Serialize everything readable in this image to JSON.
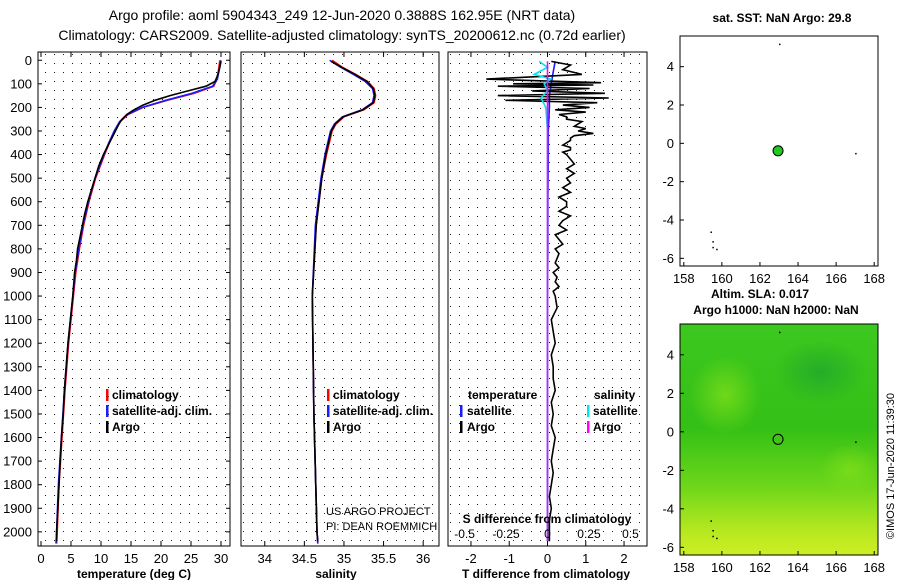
{
  "header": {
    "title_line1": "Argo profile: aoml 5904343_249 12-Jun-2020 0.3888S 162.95E (NRT data)",
    "title_line2": "Climatology: CARS2009. Satellite-adjusted climatology: synTS_20200612.nc (0.72d earlier)"
  },
  "credit": {
    "line1": "US ARGO PROJECT",
    "line2": "PI: DEAN ROEMMICH"
  },
  "watermark": "©IMOS 17-Jun-2020 11:39:30",
  "colors": {
    "climatology": "#ff0000",
    "satellite": "#1a1aff",
    "argo": "#000000",
    "sat_salinity": "#00e5ee",
    "argo_salinity": "#ff00ff",
    "map_green": "#3ccf1a",
    "float_marker": "#22c922"
  },
  "chart_data": [
    {
      "id": "temperature",
      "type": "line",
      "xlabel": "temperature (deg C)",
      "ylabel": "",
      "xlim": [
        -0.5,
        31.5
      ],
      "ylim": [
        2060,
        -35
      ],
      "xticks": [
        0,
        5,
        10,
        15,
        20,
        25,
        30
      ],
      "xticklabels": [
        "0",
        "5",
        "10",
        "15",
        "20",
        "25",
        "30"
      ],
      "yticks": [
        0,
        100,
        200,
        300,
        400,
        500,
        600,
        700,
        800,
        900,
        1000,
        1100,
        1200,
        1300,
        1400,
        1500,
        1600,
        1700,
        1800,
        1900,
        2000
      ],
      "legend": [
        "climatology",
        "satellite-adj. clim.",
        "Argo"
      ],
      "legend_title_left": "",
      "legend_title_right": "",
      "series": [
        {
          "name": "climatology",
          "color": "#ff0000",
          "y": [
            0,
            40,
            80,
            110,
            140,
            170,
            200,
            230,
            260,
            300,
            350,
            400,
            500,
            600,
            700,
            800,
            900,
            1000,
            1200,
            1400,
            1600,
            1800,
            2000,
            2050
          ],
          "x": [
            29.8,
            29.6,
            29.3,
            28.8,
            25.5,
            21.0,
            17.0,
            14.5,
            13.2,
            12.3,
            11.4,
            10.6,
            9.1,
            8.0,
            7.1,
            6.4,
            5.8,
            5.4,
            4.6,
            4.0,
            3.5,
            3.0,
            2.7,
            2.6
          ]
        },
        {
          "name": "satellite-adj. clim.",
          "color": "#1a1aff",
          "y": [
            0,
            40,
            80,
            110,
            140,
            170,
            200,
            230,
            260,
            300,
            350,
            400,
            500,
            600,
            700,
            800,
            900,
            1000,
            1200,
            1400,
            1600,
            1800,
            2000,
            2050
          ],
          "x": [
            30.0,
            29.7,
            29.4,
            28.6,
            25.2,
            20.8,
            16.9,
            14.4,
            13.1,
            12.2,
            11.3,
            10.5,
            9.0,
            7.9,
            7.0,
            6.3,
            5.7,
            5.3,
            4.5,
            3.9,
            3.4,
            2.9,
            2.6,
            2.5
          ]
        },
        {
          "name": "Argo",
          "color": "#000000",
          "y": [
            5,
            30,
            60,
            90,
            110,
            130,
            150,
            170,
            190,
            210,
            230,
            250,
            270,
            300,
            330,
            360,
            400,
            450,
            500,
            550,
            600,
            650,
            700,
            750,
            800,
            850,
            900,
            1000,
            1100,
            1200,
            1300,
            1400,
            1500,
            1600,
            1700,
            1800,
            1900,
            2000,
            2040
          ],
          "x": [
            30.0,
            29.8,
            29.5,
            29.0,
            27.5,
            24.5,
            21.5,
            19.0,
            17.0,
            15.5,
            14.3,
            13.5,
            13.0,
            12.4,
            11.8,
            11.2,
            10.4,
            9.6,
            9.0,
            8.4,
            7.8,
            7.3,
            6.9,
            6.5,
            6.1,
            5.9,
            5.6,
            5.3,
            4.9,
            4.5,
            4.2,
            3.9,
            3.7,
            3.4,
            3.2,
            3.0,
            2.8,
            2.6,
            2.6
          ]
        }
      ]
    },
    {
      "id": "salinity",
      "type": "line",
      "xlabel": "salinity",
      "ylabel": "",
      "xlim": [
        33.7,
        36.2
      ],
      "ylim": [
        2060,
        -35
      ],
      "xticks": [
        34,
        34.5,
        35,
        35.5,
        36
      ],
      "xticklabels": [
        "34",
        "34.5",
        "35",
        "35.5",
        "36"
      ],
      "legend": [
        "climatology",
        "satellite-adj. clim.",
        "Argo"
      ],
      "legend_title_left": "",
      "legend_title_right": "",
      "series": [
        {
          "name": "climatology",
          "color": "#ff0000",
          "y": [
            0,
            30,
            60,
            90,
            120,
            150,
            180,
            210,
            240,
            270,
            300,
            400,
            500,
            700,
            1000,
            1500,
            2000,
            2050
          ],
          "x": [
            34.85,
            34.98,
            35.15,
            35.3,
            35.38,
            35.4,
            35.38,
            35.25,
            35.0,
            34.9,
            34.85,
            34.78,
            34.72,
            34.65,
            34.6,
            34.62,
            34.66,
            34.67
          ]
        },
        {
          "name": "satellite-adj. clim.",
          "color": "#1a1aff",
          "y": [
            0,
            30,
            60,
            90,
            120,
            150,
            180,
            210,
            240,
            270,
            300,
            400,
            500,
            700,
            1000,
            1500,
            2000,
            2050
          ],
          "x": [
            34.82,
            34.96,
            35.12,
            35.27,
            35.36,
            35.38,
            35.36,
            35.23,
            34.98,
            34.88,
            34.83,
            34.76,
            34.71,
            34.64,
            34.6,
            34.62,
            34.66,
            34.67
          ]
        },
        {
          "name": "Argo",
          "color": "#000000",
          "y": [
            5,
            30,
            60,
            90,
            120,
            150,
            180,
            210,
            240,
            270,
            300,
            400,
            500,
            700,
            1000,
            1500,
            2000,
            2040
          ],
          "x": [
            34.84,
            34.97,
            35.14,
            35.29,
            35.37,
            35.39,
            35.37,
            35.24,
            34.99,
            34.89,
            34.84,
            34.77,
            34.72,
            34.65,
            34.6,
            34.62,
            34.66,
            34.67
          ]
        }
      ]
    },
    {
      "id": "difference",
      "type": "line",
      "xlabel": "T difference from climatology",
      "top_label": "S difference from climatology",
      "xlim": [
        -2.6,
        2.6
      ],
      "ylim": [
        2060,
        -35
      ],
      "xticks": [
        -2,
        -1,
        0,
        1,
        2
      ],
      "xticklabels": [
        "-2",
        "-1",
        "0",
        "1",
        "2"
      ],
      "s_ticks": [
        -0.5,
        -0.25,
        0,
        0.25,
        0.5
      ],
      "s_ticklabels": [
        "-0.5",
        "-0.25",
        "0",
        "0.25",
        "0.5"
      ],
      "legend_title_left": "temperature",
      "legend_title_right": "salinity",
      "legend": [
        "satellite",
        "Argo",
        "satellite",
        "Argo"
      ],
      "series": [
        {
          "name": "T satellite",
          "color": "#1a1aff",
          "y": [
            5,
            50,
            100,
            150,
            200,
            300,
            400,
            600,
            800,
            1000,
            1200,
            1400,
            1600,
            1800,
            2000,
            2040
          ],
          "x": [
            0.2,
            0.15,
            0.1,
            0.05,
            0.05,
            0.02,
            0.02,
            0.01,
            0.01,
            0.0,
            0.0,
            0.0,
            0.0,
            0.0,
            0.0,
            0.0
          ]
        },
        {
          "name": "T Argo",
          "color": "#000000",
          "y": [
            5,
            20,
            40,
            60,
            80,
            95,
            100,
            105,
            110,
            120,
            130,
            140,
            150,
            160,
            170,
            180,
            190,
            200,
            210,
            220,
            230,
            240,
            250,
            260,
            270,
            280,
            290,
            300,
            310,
            320,
            330,
            340,
            350,
            360,
            370,
            380,
            390,
            400,
            420,
            440,
            460,
            480,
            500,
            520,
            540,
            560,
            580,
            600,
            620,
            640,
            660,
            680,
            700,
            720,
            740,
            760,
            780,
            800,
            820,
            840,
            860,
            880,
            900,
            920,
            940,
            960,
            980,
            1000,
            1050,
            1100,
            1150,
            1200,
            1250,
            1300,
            1350,
            1400,
            1450,
            1500,
            1550,
            1600,
            1650,
            1700,
            1750,
            1800,
            1850,
            1900,
            1950,
            2000,
            2040
          ],
          "x": [
            0.1,
            0.6,
            0.4,
            0.9,
            -1.6,
            1.4,
            -0.9,
            1.2,
            -1.3,
            1.1,
            -0.4,
            1.5,
            -1.3,
            1.6,
            -1.1,
            1.3,
            0.4,
            1.1,
            0.2,
            1.0,
            0.3,
            0.5,
            0.5,
            0.9,
            0.8,
            0.7,
            1.0,
            0.8,
            1.2,
            0.7,
            0.6,
            0.6,
            0.5,
            0.4,
            0.6,
            0.6,
            0.4,
            0.5,
            0.6,
            0.7,
            0.5,
            0.7,
            0.5,
            0.6,
            0.4,
            0.6,
            0.3,
            0.5,
            0.5,
            0.3,
            0.6,
            0.4,
            0.3,
            0.5,
            0.2,
            0.3,
            0.4,
            0.2,
            0.3,
            0.25,
            0.2,
            0.3,
            0.15,
            0.25,
            0.2,
            0.3,
            0.15,
            0.2,
            0.25,
            0.1,
            0.15,
            0.2,
            0.1,
            0.15,
            0.15,
            0.2,
            0.1,
            0.15,
            0.1,
            0.2,
            0.15,
            0.1,
            0.15,
            0.1,
            0.05,
            0.1,
            0.05,
            0.05,
            0.05
          ]
        },
        {
          "name": "S satellite",
          "color": "#00e5ee",
          "y": [
            5,
            30,
            60,
            80,
            100,
            130,
            160,
            200,
            300,
            400,
            600,
            800,
            1000,
            1200,
            1500,
            1800,
            2000,
            2040
          ],
          "x": [
            -0.05,
            0.0,
            -0.08,
            0.02,
            -0.02,
            0.0,
            -0.04,
            -0.01,
            0.0,
            0.0,
            0.0,
            0.0,
            0.0,
            0.0,
            0.0,
            0.0,
            0.0,
            0.0
          ]
        },
        {
          "name": "S Argo",
          "color": "#ff00ff",
          "y": [
            5,
            2040
          ],
          "x": [
            0.0,
            0.0
          ]
        }
      ]
    }
  ],
  "sst_map": {
    "title": "sat. SST: NaN Argo: 29.8",
    "xticklabels": [
      "158",
      "160",
      "162",
      "164",
      "166",
      "168"
    ],
    "yticklabels": [
      "4",
      "2",
      "0",
      "-2",
      "-4",
      "-6"
    ],
    "xlim": [
      157.8,
      168.2
    ],
    "ylim": [
      -6.4,
      5.6
    ],
    "float": {
      "lon": 162.95,
      "lat": -0.39
    },
    "dots": [
      [
        163.0,
        5.2
      ],
      [
        167.0,
        -0.5
      ],
      [
        159.4,
        -4.6
      ],
      [
        159.5,
        -5.1
      ],
      [
        159.5,
        -5.4
      ],
      [
        159.7,
        -5.5
      ]
    ]
  },
  "sla_map": {
    "title_line1": "Altim. SLA: 0.017",
    "title_line2": "Argo h1000: NaN h2000: NaN",
    "xticklabels": [
      "158",
      "160",
      "162",
      "164",
      "166",
      "168"
    ],
    "yticklabels": [
      "4",
      "2",
      "0",
      "-2",
      "-4",
      "-6"
    ],
    "xlim": [
      157.8,
      168.2
    ],
    "ylim": [
      -6.4,
      5.6
    ],
    "float": {
      "lon": 162.95,
      "lat": -0.39
    },
    "dots": [
      [
        163.0,
        5.2
      ],
      [
        167.0,
        -0.5
      ],
      [
        159.4,
        -4.6
      ],
      [
        159.5,
        -5.1
      ],
      [
        159.5,
        -5.4
      ],
      [
        159.7,
        -5.5
      ]
    ]
  }
}
